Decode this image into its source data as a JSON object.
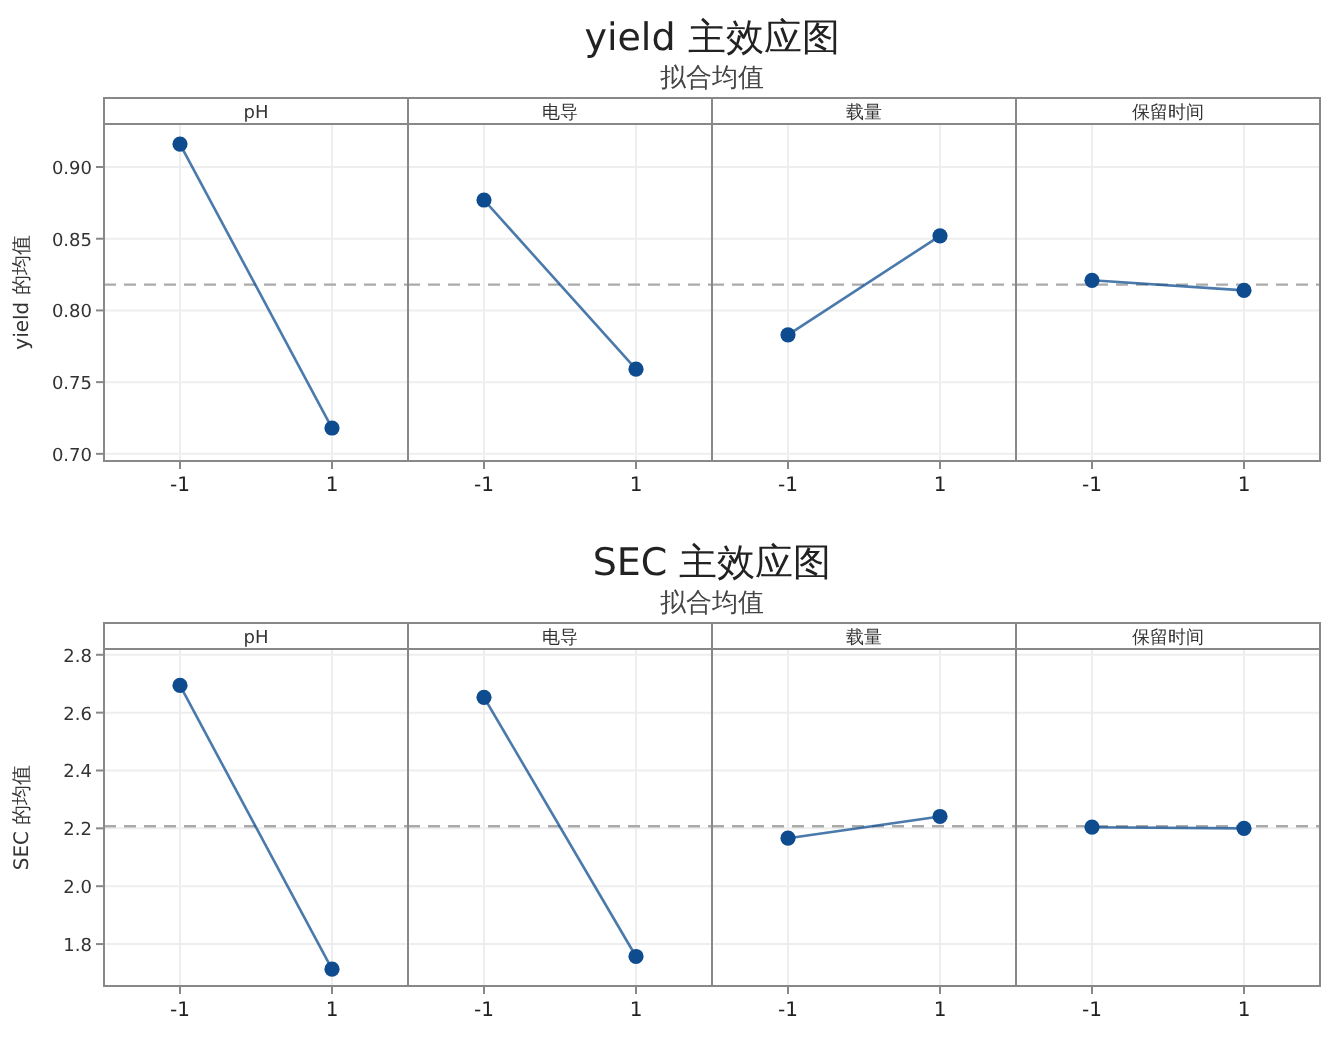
{
  "chart_data": [
    {
      "type": "other",
      "title": "yield 主效应图",
      "subtitle": "拟合均值"
    },
    {
      "type": "line",
      "title": "pH",
      "ylabel": "yield 的均值",
      "categories": [
        "-1",
        "1"
      ],
      "series": [
        {
          "color": "#0e4c8f",
          "values": [
            0.916,
            0.718
          ]
        }
      ],
      "ylim": [
        0.695,
        0.93
      ],
      "yticks": [
        {
          "value": 0.7,
          "label": "0.70"
        },
        {
          "value": 0.75,
          "label": "0.75"
        },
        {
          "value": 0.8,
          "label": "0.80"
        },
        {
          "value": 0.85,
          "label": "0.85"
        },
        {
          "value": 0.9,
          "label": "0.90"
        }
      ],
      "ref_lines": [
        {
          "axis": "y",
          "value": 0.818,
          "color": "#aaaaaa",
          "line_style": "dashed"
        }
      ],
      "grid": true,
      "marker": "circle"
    },
    {
      "type": "line",
      "title": "电导",
      "categories": [
        "-1",
        "1"
      ],
      "series": [
        {
          "color": "#0e4c8f",
          "values": [
            0.877,
            0.759
          ]
        }
      ],
      "ylim": [
        0.695,
        0.93
      ],
      "tick_labels": "x",
      "ref_lines": [
        {
          "axis": "y",
          "value": 0.818,
          "color": "#aaaaaa",
          "line_style": "dashed"
        }
      ],
      "grid": true,
      "marker": "circle"
    },
    {
      "type": "line",
      "title": "载量",
      "categories": [
        "-1",
        "1"
      ],
      "series": [
        {
          "color": "#0e4c8f",
          "values": [
            0.783,
            0.852
          ]
        }
      ],
      "ylim": [
        0.695,
        0.93
      ],
      "tick_labels": "x",
      "ref_lines": [
        {
          "axis": "y",
          "value": 0.818,
          "color": "#aaaaaa",
          "line_style": "dashed"
        }
      ],
      "grid": true,
      "marker": "circle"
    },
    {
      "type": "line",
      "title": "保留时间",
      "categories": [
        "-1",
        "1"
      ],
      "series": [
        {
          "color": "#0e4c8f",
          "values": [
            0.821,
            0.814
          ]
        }
      ],
      "ylim": [
        0.695,
        0.93
      ],
      "tick_labels": "x",
      "ref_lines": [
        {
          "axis": "y",
          "value": 0.818,
          "color": "#aaaaaa",
          "line_style": "dashed"
        }
      ],
      "grid": true,
      "marker": "circle"
    },
    {
      "type": "other",
      "title": "SEC 主效应图",
      "subtitle": "拟合均值"
    },
    {
      "type": "line",
      "title": "pH",
      "ylabel": "SEC 的均值",
      "categories": [
        "-1",
        "1"
      ],
      "series": [
        {
          "color": "#0e4c8f",
          "values": [
            2.694,
            1.713
          ]
        }
      ],
      "ylim": [
        1.655,
        2.82
      ],
      "yticks": [
        {
          "value": 1.8,
          "label": "1.8"
        },
        {
          "value": 2.0,
          "label": "2.0"
        },
        {
          "value": 2.2,
          "label": "2.2"
        },
        {
          "value": 2.4,
          "label": "2.4"
        },
        {
          "value": 2.6,
          "label": "2.6"
        },
        {
          "value": 2.8,
          "label": "2.8"
        }
      ],
      "ref_lines": [
        {
          "axis": "y",
          "value": 2.207,
          "color": "#aaaaaa",
          "line_style": "dashed"
        }
      ],
      "grid": true,
      "marker": "circle"
    },
    {
      "type": "line",
      "title": "电导",
      "categories": [
        "-1",
        "1"
      ],
      "series": [
        {
          "color": "#0e4c8f",
          "values": [
            2.653,
            1.757
          ]
        }
      ],
      "ylim": [
        1.655,
        2.82
      ],
      "tick_labels": "x",
      "ref_lines": [
        {
          "axis": "y",
          "value": 2.207,
          "color": "#aaaaaa",
          "line_style": "dashed"
        }
      ],
      "grid": true,
      "marker": "circle"
    },
    {
      "type": "line",
      "title": "载量",
      "categories": [
        "-1",
        "1"
      ],
      "series": [
        {
          "color": "#0e4c8f",
          "values": [
            2.166,
            2.241
          ]
        }
      ],
      "ylim": [
        1.655,
        2.82
      ],
      "tick_labels": "x",
      "ref_lines": [
        {
          "axis": "y",
          "value": 2.207,
          "color": "#aaaaaa",
          "line_style": "dashed"
        }
      ],
      "grid": true,
      "marker": "circle"
    },
    {
      "type": "line",
      "title": "保留时间",
      "categories": [
        "-1",
        "1"
      ],
      "series": [
        {
          "color": "#0e4c8f",
          "values": [
            2.204,
            2.2
          ]
        }
      ],
      "ylim": [
        1.655,
        2.82
      ],
      "tick_labels": "x",
      "ref_lines": [
        {
          "axis": "y",
          "value": 2.207,
          "color": "#aaaaaa",
          "line_style": "dashed"
        }
      ],
      "grid": true,
      "marker": "circle"
    }
  ]
}
